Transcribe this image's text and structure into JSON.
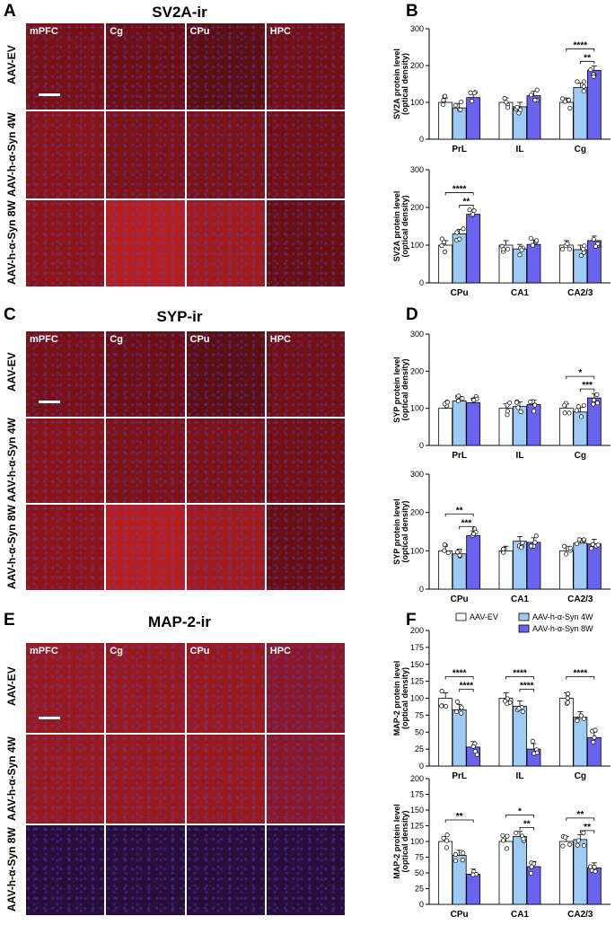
{
  "panels": {
    "A": {
      "letter": "A",
      "title": "SV2A-ir"
    },
    "B": {
      "letter": "B"
    },
    "C": {
      "letter": "C",
      "title": "SYP-ir"
    },
    "D": {
      "letter": "D"
    },
    "E": {
      "letter": "E",
      "title": "MAP-2-ir"
    },
    "F": {
      "letter": "F"
    }
  },
  "region_labels": [
    "mPFC",
    "Cg",
    "CPu",
    "HPC"
  ],
  "row_labels": [
    "AAV-EV",
    "AAV-h-α-Syn 4W",
    "AAV-h-α-Syn 8W"
  ],
  "legend": {
    "ev": "AAV-EV",
    "w4": "AAV-h-α-Syn 4W",
    "w8": "AAV-h-α-Syn 8W"
  },
  "colors": {
    "ev": "#ffffff",
    "w4": "#9ecbf4",
    "w8": "#6a63f0",
    "tile_base": "#7a0e12",
    "nuclei": "#4a4ad8"
  },
  "chart_data": [
    {
      "type": "bar",
      "id": "B1",
      "ylabel": [
        "SV2A protein level",
        "(optical density)"
      ],
      "ylim": [
        0,
        300
      ],
      "yticks": [
        0,
        100,
        200,
        300
      ],
      "groups": [
        "PrL",
        "IL",
        "Cg"
      ],
      "values": [
        [
          100,
          85,
          113
        ],
        [
          100,
          88,
          118
        ],
        [
          100,
          140,
          187
        ]
      ],
      "sig": [
        {
          "g": 2,
          "from": 0,
          "to": 2,
          "label": "****",
          "level": 1
        },
        {
          "g": 2,
          "from": 1,
          "to": 2,
          "label": "**",
          "level": 0
        }
      ]
    },
    {
      "type": "bar",
      "id": "B2",
      "ylabel": [
        "SV2A protein level",
        "(optical density)"
      ],
      "ylim": [
        0,
        300
      ],
      "yticks": [
        0,
        100,
        200,
        300
      ],
      "groups": [
        "CPu",
        "CA1",
        "CA2/3"
      ],
      "values": [
        [
          100,
          130,
          182
        ],
        [
          100,
          90,
          102
        ],
        [
          100,
          88,
          112
        ]
      ],
      "sig": [
        {
          "g": 0,
          "from": 0,
          "to": 2,
          "label": "****",
          "level": 1
        },
        {
          "g": 0,
          "from": 1,
          "to": 2,
          "label": "**",
          "level": 0
        }
      ]
    },
    {
      "type": "bar",
      "id": "D1",
      "ylabel": [
        "SYP protein level",
        "(optical density)"
      ],
      "ylim": [
        0,
        300
      ],
      "yticks": [
        0,
        100,
        200,
        300
      ],
      "groups": [
        "PrL",
        "IL",
        "Cg"
      ],
      "values": [
        [
          100,
          120,
          115
        ],
        [
          100,
          105,
          110
        ],
        [
          100,
          90,
          128
        ]
      ],
      "sig": [
        {
          "g": 2,
          "from": 0,
          "to": 2,
          "label": "*",
          "level": 1
        },
        {
          "g": 2,
          "from": 1,
          "to": 2,
          "label": "***",
          "level": 0
        }
      ]
    },
    {
      "type": "bar",
      "id": "D2",
      "ylabel": [
        "SYP protein level",
        "(optical density)"
      ],
      "ylim": [
        0,
        300
      ],
      "yticks": [
        0,
        100,
        200,
        300
      ],
      "groups": [
        "CPu",
        "CA1",
        "CA2/3"
      ],
      "values": [
        [
          100,
          92,
          140
        ],
        [
          100,
          125,
          122
        ],
        [
          100,
          120,
          118
        ]
      ],
      "sig": [
        {
          "g": 0,
          "from": 0,
          "to": 2,
          "label": "**",
          "level": 1
        },
        {
          "g": 0,
          "from": 1,
          "to": 2,
          "label": "***",
          "level": 0
        }
      ]
    },
    {
      "type": "bar",
      "id": "F1",
      "ylabel": [
        "MAP-2 protein level",
        "(optical density)"
      ],
      "ylim": [
        0,
        200
      ],
      "yticks": [
        0,
        25,
        50,
        75,
        100,
        125,
        150,
        175,
        200
      ],
      "groups": [
        "PrL",
        "IL",
        "Cg"
      ],
      "values": [
        [
          100,
          83,
          28
        ],
        [
          100,
          88,
          25
        ],
        [
          100,
          72,
          42
        ]
      ],
      "sig": [
        {
          "g": 0,
          "from": 0,
          "to": 2,
          "label": "****",
          "level": 1
        },
        {
          "g": 0,
          "from": 1,
          "to": 2,
          "label": "****",
          "level": 0
        },
        {
          "g": 1,
          "from": 0,
          "to": 2,
          "label": "****",
          "level": 1
        },
        {
          "g": 1,
          "from": 1,
          "to": 2,
          "label": "****",
          "level": 0
        },
        {
          "g": 2,
          "from": 0,
          "to": 2,
          "label": "****",
          "level": 1
        }
      ]
    },
    {
      "type": "bar",
      "id": "F2",
      "ylabel": [
        "MAP-2 protein level",
        "(optical density)"
      ],
      "ylim": [
        0,
        200
      ],
      "yticks": [
        0,
        25,
        50,
        75,
        100,
        125,
        150,
        175,
        200
      ],
      "groups": [
        "CPu",
        "CA1",
        "CA2/3"
      ],
      "values": [
        [
          100,
          78,
          48
        ],
        [
          100,
          108,
          60
        ],
        [
          100,
          103,
          58
        ]
      ],
      "sig": [
        {
          "g": 0,
          "from": 0,
          "to": 2,
          "label": "**",
          "level": 1
        },
        {
          "g": 1,
          "from": 0,
          "to": 2,
          "label": "*",
          "level": 1
        },
        {
          "g": 1,
          "from": 1,
          "to": 2,
          "label": "**",
          "level": 0
        },
        {
          "g": 2,
          "from": 0,
          "to": 2,
          "label": "**",
          "level": 1
        },
        {
          "g": 2,
          "from": 1,
          "to": 2,
          "label": "**",
          "level": 0
        }
      ]
    }
  ]
}
